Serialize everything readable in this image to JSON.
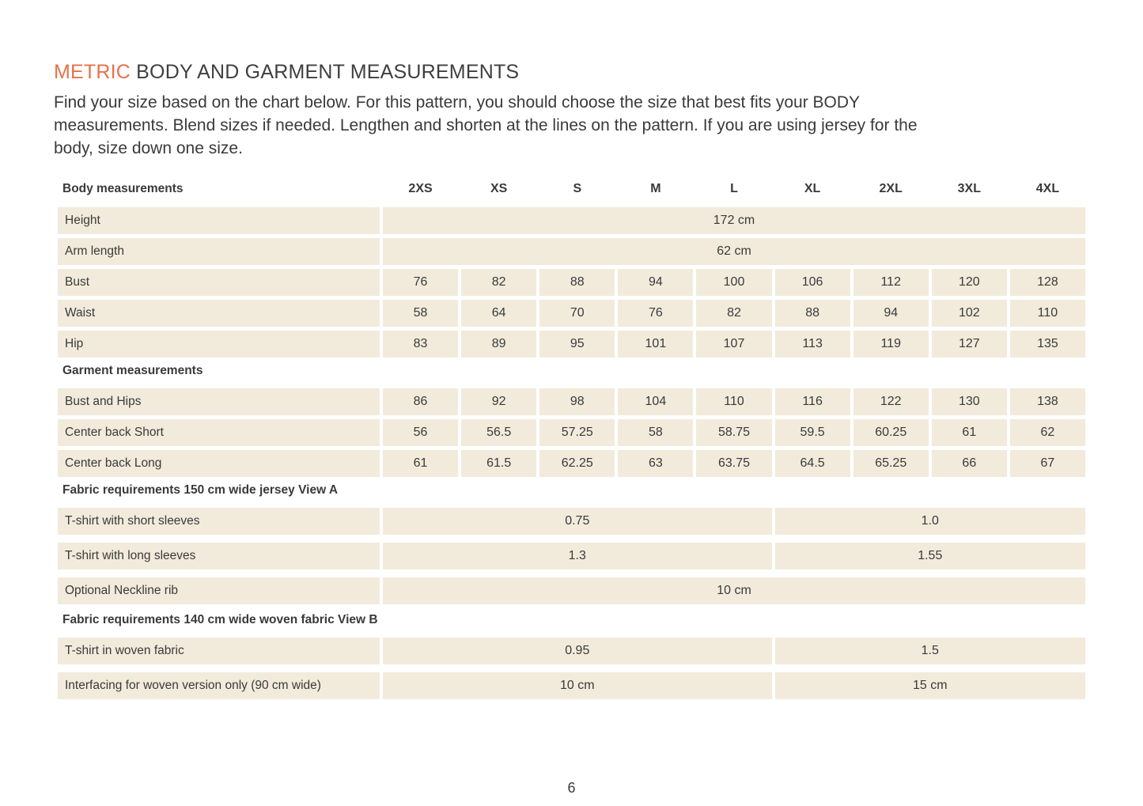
{
  "colors": {
    "accent_orange": "#e7714b",
    "cell_beige": "#f2ebdc",
    "text": "#3a3a3a"
  },
  "title": {
    "highlight": "METRIC",
    "rest": " BODY AND GARMENT MEASUREMENTS"
  },
  "intro": {
    "lines": [
      "Find your size based on the chart below. For this pattern, you should choose the size that best fits your BODY",
      "measurements. Blend sizes if needed. Lengthen and shorten at the lines on the pattern. If you are using jersey for the",
      "body, size down one size."
    ]
  },
  "table": {
    "columns_label": "Body measurements",
    "sizes": [
      "2XS",
      "XS",
      "S",
      "M",
      "L",
      "XL",
      "2XL",
      "3XL",
      "4XL"
    ],
    "sections": [
      {
        "heading": null,
        "rows": [
          {
            "label": "Height",
            "cells": [
              {
                "span": 9,
                "value": "172 cm"
              }
            ]
          },
          {
            "label": "Arm length",
            "cells": [
              {
                "span": 9,
                "value": "62 cm"
              }
            ]
          },
          {
            "label": "Bust",
            "cells": [
              {
                "span": 1,
                "value": "76"
              },
              {
                "span": 1,
                "value": "82"
              },
              {
                "span": 1,
                "value": "88"
              },
              {
                "span": 1,
                "value": "94"
              },
              {
                "span": 1,
                "value": "100"
              },
              {
                "span": 1,
                "value": "106"
              },
              {
                "span": 1,
                "value": "112"
              },
              {
                "span": 1,
                "value": "120"
              },
              {
                "span": 1,
                "value": "128"
              }
            ]
          },
          {
            "label": "Waist",
            "cells": [
              {
                "span": 1,
                "value": "58"
              },
              {
                "span": 1,
                "value": "64"
              },
              {
                "span": 1,
                "value": "70"
              },
              {
                "span": 1,
                "value": "76"
              },
              {
                "span": 1,
                "value": "82"
              },
              {
                "span": 1,
                "value": "88"
              },
              {
                "span": 1,
                "value": "94"
              },
              {
                "span": 1,
                "value": "102"
              },
              {
                "span": 1,
                "value": "110"
              }
            ]
          },
          {
            "label": "Hip",
            "cells": [
              {
                "span": 1,
                "value": "83"
              },
              {
                "span": 1,
                "value": "89"
              },
              {
                "span": 1,
                "value": "95"
              },
              {
                "span": 1,
                "value": "101"
              },
              {
                "span": 1,
                "value": "107"
              },
              {
                "span": 1,
                "value": "113"
              },
              {
                "span": 1,
                "value": "119"
              },
              {
                "span": 1,
                "value": "127"
              },
              {
                "span": 1,
                "value": "135"
              }
            ]
          }
        ]
      },
      {
        "heading": "Garment measurements",
        "rows": [
          {
            "label": "Bust and Hips",
            "cells": [
              {
                "span": 1,
                "value": "86"
              },
              {
                "span": 1,
                "value": "92"
              },
              {
                "span": 1,
                "value": "98"
              },
              {
                "span": 1,
                "value": "104"
              },
              {
                "span": 1,
                "value": "110"
              },
              {
                "span": 1,
                "value": "116"
              },
              {
                "span": 1,
                "value": "122"
              },
              {
                "span": 1,
                "value": "130"
              },
              {
                "span": 1,
                "value": "138"
              }
            ]
          },
          {
            "label": "Center back Short",
            "cells": [
              {
                "span": 1,
                "value": "56"
              },
              {
                "span": 1,
                "value": "56.5"
              },
              {
                "span": 1,
                "value": "57.25"
              },
              {
                "span": 1,
                "value": "58"
              },
              {
                "span": 1,
                "value": "58.75"
              },
              {
                "span": 1,
                "value": "59.5"
              },
              {
                "span": 1,
                "value": "60.25"
              },
              {
                "span": 1,
                "value": "61"
              },
              {
                "span": 1,
                "value": "62"
              }
            ]
          },
          {
            "label": "Center back Long",
            "cells": [
              {
                "span": 1,
                "value": "61"
              },
              {
                "span": 1,
                "value": "61.5"
              },
              {
                "span": 1,
                "value": "62.25"
              },
              {
                "span": 1,
                "value": "63"
              },
              {
                "span": 1,
                "value": "63.75"
              },
              {
                "span": 1,
                "value": "64.5"
              },
              {
                "span": 1,
                "value": "65.25"
              },
              {
                "span": 1,
                "value": "66"
              },
              {
                "span": 1,
                "value": "67"
              }
            ]
          }
        ]
      },
      {
        "heading": "Fabric requirements 150 cm wide jersey View A",
        "rows": [
          {
            "label": "T-shirt with short sleeves",
            "cells": [
              {
                "span": 5,
                "value": "0.75"
              },
              {
                "span": 4,
                "value": "1.0"
              }
            ]
          },
          {
            "label": "T-shirt with long sleeves",
            "cells": [
              {
                "span": 5,
                "value": "1.3"
              },
              {
                "span": 4,
                "value": "1.55"
              }
            ]
          },
          {
            "label": "Optional Neckline rib",
            "cells": [
              {
                "span": 9,
                "value": "10 cm"
              }
            ]
          }
        ]
      },
      {
        "heading": "Fabric requirements 140 cm wide woven fabric View B",
        "rows": [
          {
            "label": "T-shirt in woven fabric",
            "cells": [
              {
                "span": 5,
                "value": "0.95"
              },
              {
                "span": 4,
                "value": "1.5"
              }
            ]
          },
          {
            "label": "Interfacing for woven version only (90 cm wide)",
            "cells": [
              {
                "span": 5,
                "value": "10 cm"
              },
              {
                "span": 4,
                "value": "15 cm"
              }
            ]
          }
        ]
      }
    ]
  },
  "footer": {
    "page_number": "6"
  }
}
